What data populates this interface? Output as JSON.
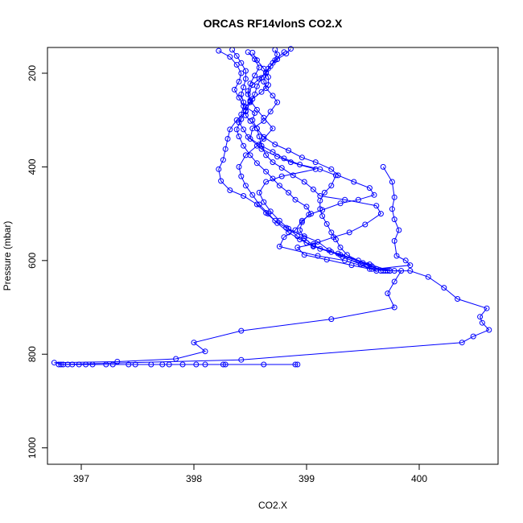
{
  "chart_data": {
    "type": "line",
    "title": "ORCAS RF14vlonS CO2.X",
    "xlabel": "CO2.X",
    "ylabel": "Pressure (mbar)",
    "xlim": [
      396.7,
      400.7
    ],
    "ylim": [
      1035,
      145
    ],
    "y_reversed": true,
    "x_ticks": [
      397,
      398,
      399,
      400
    ],
    "x_tick_labels": [
      "397",
      "398",
      "399",
      "400"
    ],
    "y_ticks": [
      200,
      400,
      600,
      800,
      1000
    ],
    "y_tick_labels": [
      "200",
      "400",
      "600",
      "800",
      "1000"
    ],
    "grid": false,
    "color": "#0000ff",
    "marker": "open-circle",
    "series": [
      {
        "points": [
          [
            398.92,
            822
          ],
          [
            398.62,
            822
          ],
          [
            398.28,
            822
          ],
          [
            398.26,
            822
          ],
          [
            398.1,
            822
          ],
          [
            398.02,
            822
          ],
          [
            397.9,
            822
          ],
          [
            397.78,
            822
          ],
          [
            397.72,
            822
          ],
          [
            397.62,
            822
          ],
          [
            397.48,
            822
          ],
          [
            397.42,
            822
          ],
          [
            397.28,
            822
          ],
          [
            397.22,
            822
          ],
          [
            397.1,
            822
          ],
          [
            397.04,
            822
          ],
          [
            396.98,
            822
          ],
          [
            396.92,
            822
          ],
          [
            396.88,
            822
          ],
          [
            396.84,
            822
          ],
          [
            396.76,
            818
          ],
          [
            397.32,
            816
          ],
          [
            397.84,
            810
          ],
          [
            398.1,
            794
          ],
          [
            398.0,
            775
          ],
          [
            398.42,
            750
          ],
          [
            399.22,
            725
          ],
          [
            399.78,
            700
          ],
          [
            399.72,
            670
          ],
          [
            399.78,
            645
          ],
          [
            399.84,
            622
          ],
          [
            399.74,
            622
          ],
          [
            399.62,
            618
          ],
          [
            399.92,
            610
          ],
          [
            399.88,
            600
          ],
          [
            399.8,
            590
          ],
          [
            399.78,
            558
          ],
          [
            399.82,
            535
          ],
          [
            399.78,
            512
          ],
          [
            399.76,
            490
          ],
          [
            399.78,
            465
          ],
          [
            399.76,
            432
          ],
          [
            399.68,
            400
          ]
        ]
      },
      {
        "points": [
          [
            396.82,
            822
          ],
          [
            398.9,
            822
          ]
        ]
      },
      {
        "points": [
          [
            396.8,
            822
          ],
          [
            398.42,
            812
          ],
          [
            400.38,
            775
          ],
          [
            400.48,
            762
          ],
          [
            400.62,
            748
          ],
          [
            400.56,
            733
          ],
          [
            400.54,
            720
          ],
          [
            400.6,
            702
          ],
          [
            400.34,
            682
          ],
          [
            400.22,
            658
          ],
          [
            400.08,
            635
          ],
          [
            399.92,
            622
          ],
          [
            399.78,
            622
          ],
          [
            399.56,
            618
          ],
          [
            399.4,
            610
          ],
          [
            399.18,
            598
          ],
          [
            398.98,
            588
          ],
          [
            398.92,
            572
          ],
          [
            399.06,
            565
          ],
          [
            399.24,
            550
          ],
          [
            399.38,
            540
          ],
          [
            399.52,
            523
          ],
          [
            399.66,
            500
          ],
          [
            399.62,
            483
          ],
          [
            399.34,
            470
          ],
          [
            399.12,
            462
          ],
          [
            399.06,
            448
          ],
          [
            398.98,
            432
          ],
          [
            398.88,
            418
          ],
          [
            398.78,
            402
          ],
          [
            398.7,
            390
          ],
          [
            398.64,
            375
          ],
          [
            398.6,
            355
          ],
          [
            398.58,
            335
          ],
          [
            398.56,
            318
          ],
          [
            398.52,
            300
          ],
          [
            398.54,
            285
          ],
          [
            398.46,
            272
          ],
          [
            398.5,
            260
          ],
          [
            398.48,
            245
          ],
          [
            398.52,
            225
          ],
          [
            398.58,
            212
          ],
          [
            398.64,
            198
          ],
          [
            398.68,
            185
          ],
          [
            398.74,
            170
          ],
          [
            398.82,
            158
          ],
          [
            398.86,
            148
          ]
        ]
      },
      {
        "points": [
          [
            399.72,
            622
          ],
          [
            399.58,
            618
          ],
          [
            399.34,
            600
          ],
          [
            399.1,
            590
          ],
          [
            398.76,
            570
          ],
          [
            398.8,
            550
          ],
          [
            398.9,
            535
          ],
          [
            398.96,
            515
          ],
          [
            399.04,
            500
          ],
          [
            399.0,
            485
          ],
          [
            398.9,
            470
          ],
          [
            398.84,
            455
          ],
          [
            398.76,
            440
          ],
          [
            398.7,
            425
          ],
          [
            398.64,
            410
          ],
          [
            398.56,
            392
          ],
          [
            398.5,
            375
          ],
          [
            398.44,
            355
          ],
          [
            398.4,
            335
          ],
          [
            398.38,
            320
          ],
          [
            398.42,
            298
          ],
          [
            398.46,
            280
          ],
          [
            398.44,
            262
          ],
          [
            398.42,
            245
          ],
          [
            398.44,
            230
          ],
          [
            398.46,
            212
          ],
          [
            398.46,
            195
          ],
          [
            398.42,
            178
          ],
          [
            398.38,
            163
          ],
          [
            398.34,
            150
          ]
        ]
      },
      {
        "points": [
          [
            399.62,
            622
          ],
          [
            399.48,
            608
          ],
          [
            399.32,
            592
          ],
          [
            399.2,
            578
          ],
          [
            399.1,
            560
          ],
          [
            398.98,
            548
          ],
          [
            398.82,
            530
          ],
          [
            398.72,
            515
          ],
          [
            398.64,
            498
          ],
          [
            398.56,
            480
          ],
          [
            398.44,
            462
          ],
          [
            398.32,
            450
          ],
          [
            398.24,
            430
          ],
          [
            398.22,
            405
          ],
          [
            398.26,
            385
          ],
          [
            398.28,
            362
          ],
          [
            398.3,
            340
          ],
          [
            398.32,
            320
          ],
          [
            398.38,
            300
          ],
          [
            398.46,
            282
          ],
          [
            398.5,
            262
          ],
          [
            398.54,
            245
          ],
          [
            398.56,
            228
          ],
          [
            398.6,
            210
          ],
          [
            398.66,
            190
          ],
          [
            398.72,
            172
          ],
          [
            398.8,
            155
          ]
        ]
      },
      {
        "points": [
          [
            399.74,
            622
          ],
          [
            399.56,
            608
          ],
          [
            399.28,
            585
          ],
          [
            399.06,
            570
          ],
          [
            398.94,
            555
          ],
          [
            398.84,
            540
          ],
          [
            398.74,
            520
          ],
          [
            398.66,
            500
          ],
          [
            398.58,
            480
          ],
          [
            398.52,
            460
          ],
          [
            398.46,
            440
          ],
          [
            398.42,
            420
          ],
          [
            398.4,
            400
          ],
          [
            398.46,
            375
          ],
          [
            398.56,
            355
          ],
          [
            398.62,
            340
          ],
          [
            398.7,
            318
          ],
          [
            398.62,
            295
          ],
          [
            398.56,
            278
          ],
          [
            398.5,
            258
          ],
          [
            398.48,
            238
          ],
          [
            398.5,
            222
          ],
          [
            398.54,
            205
          ],
          [
            398.58,
            188
          ],
          [
            398.54,
            170
          ],
          [
            398.48,
            155
          ]
        ]
      },
      {
        "points": [
          [
            399.66,
            622
          ],
          [
            399.5,
            605
          ],
          [
            399.3,
            588
          ],
          [
            399.12,
            575
          ],
          [
            399.0,
            562
          ],
          [
            398.92,
            548
          ],
          [
            398.84,
            532
          ],
          [
            398.76,
            515
          ],
          [
            398.68,
            495
          ],
          [
            398.62,
            475
          ],
          [
            398.58,
            455
          ],
          [
            398.64,
            432
          ],
          [
            398.78,
            420
          ],
          [
            399.08,
            405
          ],
          [
            398.86,
            390
          ],
          [
            398.74,
            378
          ],
          [
            398.6,
            362
          ],
          [
            398.5,
            340
          ],
          [
            398.52,
            318
          ],
          [
            398.62,
            302
          ],
          [
            398.68,
            282
          ],
          [
            398.74,
            262
          ],
          [
            398.7,
            248
          ],
          [
            398.64,
            232
          ],
          [
            398.62,
            218
          ],
          [
            398.64,
            200
          ],
          [
            398.7,
            178
          ],
          [
            398.74,
            160
          ],
          [
            398.72,
            150
          ]
        ]
      },
      {
        "points": [
          [
            399.7,
            622
          ],
          [
            399.54,
            610
          ],
          [
            399.38,
            598
          ],
          [
            399.22,
            582
          ],
          [
            399.06,
            568
          ],
          [
            398.98,
            552
          ],
          [
            398.94,
            535
          ],
          [
            398.96,
            518
          ],
          [
            399.02,
            502
          ],
          [
            399.14,
            492
          ],
          [
            399.3,
            478
          ],
          [
            399.46,
            470
          ],
          [
            399.6,
            460
          ],
          [
            399.56,
            445
          ],
          [
            399.42,
            432
          ],
          [
            399.28,
            418
          ],
          [
            399.22,
            405
          ],
          [
            399.08,
            390
          ],
          [
            398.96,
            380
          ],
          [
            398.84,
            365
          ],
          [
            398.72,
            352
          ],
          [
            398.62,
            336
          ],
          [
            398.56,
            318
          ],
          [
            398.5,
            302
          ],
          [
            398.46,
            290
          ],
          [
            398.46,
            272
          ],
          [
            398.52,
            255
          ],
          [
            398.6,
            240
          ],
          [
            398.66,
            225
          ],
          [
            398.66,
            208
          ],
          [
            398.62,
            190
          ],
          [
            398.56,
            172
          ],
          [
            398.52,
            156
          ]
        ]
      },
      {
        "points": [
          [
            399.68,
            622
          ],
          [
            399.58,
            612
          ],
          [
            399.46,
            600
          ],
          [
            399.36,
            588
          ],
          [
            399.3,
            572
          ],
          [
            399.26,
            555
          ],
          [
            399.22,
            540
          ],
          [
            399.18,
            522
          ],
          [
            399.14,
            505
          ],
          [
            399.12,
            490
          ],
          [
            399.12,
            472
          ],
          [
            399.16,
            455
          ],
          [
            399.22,
            440
          ],
          [
            399.26,
            418
          ],
          [
            399.12,
            405
          ],
          [
            398.94,
            395
          ],
          [
            398.8,
            382
          ],
          [
            398.7,
            368
          ],
          [
            398.58,
            352
          ],
          [
            398.48,
            336
          ],
          [
            398.44,
            320
          ],
          [
            398.4,
            305
          ],
          [
            398.42,
            288
          ],
          [
            398.44,
            270
          ],
          [
            398.4,
            252
          ],
          [
            398.36,
            235
          ],
          [
            398.4,
            218
          ],
          [
            398.42,
            200
          ],
          [
            398.38,
            182
          ],
          [
            398.32,
            165
          ],
          [
            398.22,
            152
          ]
        ]
      }
    ]
  }
}
